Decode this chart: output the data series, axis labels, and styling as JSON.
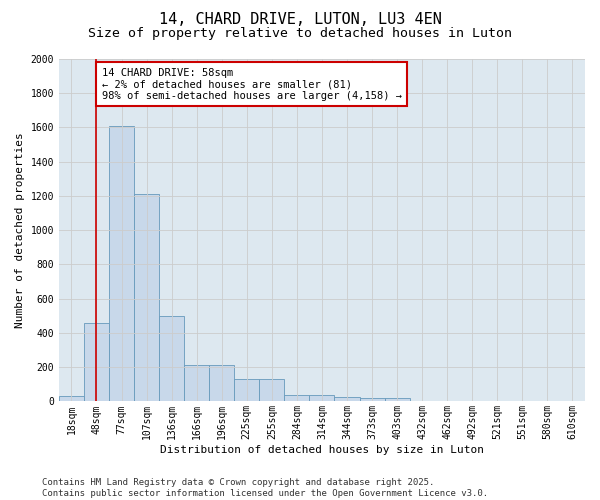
{
  "title_line1": "14, CHARD DRIVE, LUTON, LU3 4EN",
  "title_line2": "Size of property relative to detached houses in Luton",
  "xlabel": "Distribution of detached houses by size in Luton",
  "ylabel": "Number of detached properties",
  "bin_labels": [
    "18sqm",
    "48sqm",
    "77sqm",
    "107sqm",
    "136sqm",
    "166sqm",
    "196sqm",
    "225sqm",
    "255sqm",
    "284sqm",
    "314sqm",
    "344sqm",
    "373sqm",
    "403sqm",
    "432sqm",
    "462sqm",
    "492sqm",
    "521sqm",
    "551sqm",
    "580sqm",
    "610sqm"
  ],
  "bar_values": [
    30,
    460,
    1610,
    1210,
    500,
    215,
    215,
    130,
    130,
    40,
    40,
    25,
    20,
    20,
    0,
    0,
    0,
    0,
    0,
    0,
    0
  ],
  "bar_color": "#c8d8ea",
  "bar_edge_color": "#6699bb",
  "property_line_x": 1.0,
  "annotation_text": "14 CHARD DRIVE: 58sqm\n← 2% of detached houses are smaller (81)\n98% of semi-detached houses are larger (4,158) →",
  "annotation_box_color": "#ffffff",
  "annotation_box_edge_color": "#cc0000",
  "vline_color": "#cc0000",
  "ylim": [
    0,
    2000
  ],
  "yticks": [
    0,
    200,
    400,
    600,
    800,
    1000,
    1200,
    1400,
    1600,
    1800,
    2000
  ],
  "grid_color": "#cccccc",
  "bg_color": "#dde8f0",
  "footer_line1": "Contains HM Land Registry data © Crown copyright and database right 2025.",
  "footer_line2": "Contains public sector information licensed under the Open Government Licence v3.0.",
  "title_fontsize": 11,
  "subtitle_fontsize": 9.5,
  "axis_label_fontsize": 8,
  "tick_fontsize": 7,
  "annotation_fontsize": 7.5,
  "footer_fontsize": 6.5
}
